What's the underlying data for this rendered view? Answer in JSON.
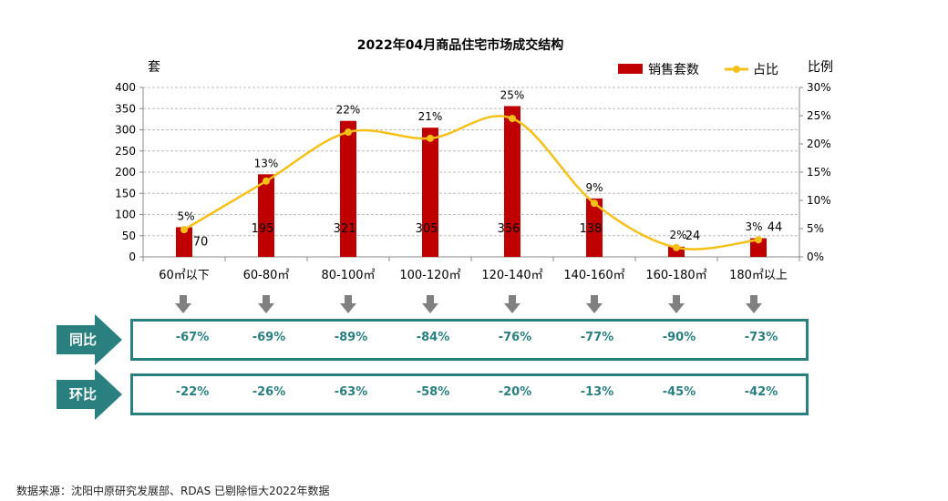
{
  "chart_data": {
    "type": "bar+line",
    "title": "2022年04月商品住宅市场成交结构",
    "ylabel_left": "套",
    "ylabel_right": "比例",
    "categories": [
      "60㎡以下",
      "60-80㎡",
      "80-100㎡",
      "100-120㎡",
      "120-140㎡",
      "140-160㎡",
      "160-180㎡",
      "180㎡以上"
    ],
    "series": [
      {
        "name": "销售套数",
        "type": "bar",
        "color": "#c00000",
        "values": [
          70,
          195,
          321,
          305,
          356,
          138,
          24,
          44
        ]
      },
      {
        "name": "占比",
        "type": "line",
        "color": "#f5c018",
        "labels": [
          "5%",
          "13%",
          "22%",
          "21%",
          "25%",
          "9%",
          "2%",
          "3%"
        ]
      }
    ],
    "ylim_left": [
      0,
      400
    ],
    "yticks_left": [
      0,
      50,
      100,
      150,
      200,
      250,
      300,
      350,
      400
    ],
    "ylim_right": [
      0,
      30
    ],
    "yticks_right": [
      "0%",
      "5%",
      "10%",
      "15%",
      "20%",
      "25%",
      "30%"
    ],
    "grid": true,
    "legend": "top-right"
  },
  "rows": [
    {
      "label": "同比",
      "values": [
        "-67%",
        "-69%",
        "-89%",
        "-84%",
        "-76%",
        "-77%",
        "-90%",
        "-73%"
      ]
    },
    {
      "label": "环比",
      "values": [
        "-22%",
        "-26%",
        "-63%",
        "-58%",
        "-20%",
        "-13%",
        "-45%",
        "-42%"
      ]
    }
  ],
  "colors": {
    "teal": "#2a7f7f",
    "arrow": "#808080"
  },
  "source": "数据来源：沈阳中原研究发展部、RDAS  已剔除恒大2022年数据"
}
